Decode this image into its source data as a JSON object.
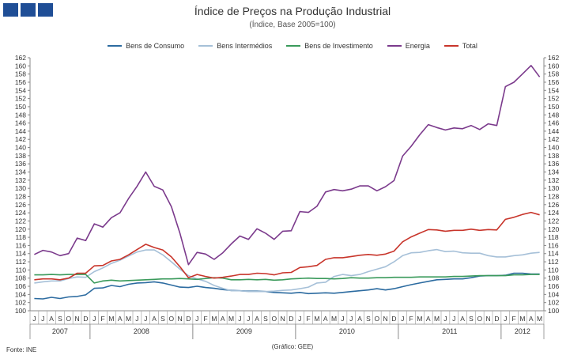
{
  "title": "Índice de Preços na Produção Industrial",
  "subtitle": "(Índice, Base 2005=100)",
  "source": "Fonte: INE",
  "credit": "(Gráfico: GEE)",
  "colors": {
    "logo": "#1f4e96",
    "Bens de Consumo": "#2c6ba0",
    "Bens Intermédios": "#a6c0d8",
    "Bens de Investimento": "#3a9a5b",
    "Energia": "#7b3a8c",
    "Total": "#c8352b"
  },
  "chart_data": {
    "type": "line",
    "ylim": [
      100,
      162
    ],
    "ytick_step": 2,
    "grid": false,
    "legend_position": "top",
    "months": [
      "J",
      "J",
      "A",
      "S",
      "O",
      "N",
      "D",
      "J",
      "F",
      "M",
      "A",
      "M",
      "J",
      "J",
      "A",
      "S",
      "O",
      "N",
      "D",
      "J",
      "F",
      "M",
      "A",
      "M",
      "J",
      "J",
      "A",
      "S",
      "O",
      "N",
      "D",
      "J",
      "F",
      "M",
      "A",
      "M",
      "J",
      "J",
      "A",
      "S",
      "O",
      "N",
      "D",
      "J",
      "F",
      "M",
      "A",
      "M",
      "J",
      "J",
      "A",
      "S",
      "O",
      "N",
      "D",
      "J",
      "F",
      "M",
      "A",
      "M"
    ],
    "years": [
      {
        "label": "2007",
        "start": 0,
        "count": 7
      },
      {
        "label": "2008",
        "start": 7,
        "count": 12
      },
      {
        "label": "2009",
        "start": 19,
        "count": 12
      },
      {
        "label": "2010",
        "start": 31,
        "count": 12
      },
      {
        "label": "2011",
        "start": 43,
        "count": 12
      },
      {
        "label": "2012",
        "start": 55,
        "count": 5
      }
    ],
    "series": [
      {
        "name": "Bens de Consumo",
        "values": [
          103.0,
          102.9,
          103.3,
          103.0,
          103.4,
          103.5,
          103.9,
          105.5,
          105.6,
          106.2,
          105.9,
          106.5,
          106.8,
          106.9,
          107.1,
          106.8,
          106.3,
          105.8,
          105.7,
          106.0,
          105.7,
          105.5,
          105.2,
          105.0,
          104.9,
          104.8,
          104.8,
          104.7,
          104.5,
          104.4,
          104.3,
          104.5,
          104.2,
          104.3,
          104.4,
          104.3,
          104.5,
          104.7,
          104.9,
          105.1,
          105.4,
          105.1,
          105.4,
          105.9,
          106.4,
          106.8,
          107.2,
          107.6,
          107.7,
          107.8,
          107.8,
          108.1,
          108.5,
          108.6,
          108.6,
          108.7,
          109.2,
          109.2,
          109.0,
          109.0
        ]
      },
      {
        "name": "Bens Intermédios",
        "values": [
          106.8,
          107.1,
          107.3,
          107.3,
          107.9,
          108.3,
          108.2,
          109.6,
          110.5,
          111.6,
          112.4,
          113.4,
          114.4,
          114.9,
          114.9,
          113.7,
          112.0,
          110.2,
          108.6,
          107.8,
          107.2,
          106.2,
          105.5,
          104.9,
          104.9,
          104.7,
          104.7,
          104.7,
          104.8,
          105.0,
          105.1,
          105.4,
          105.8,
          106.8,
          107.0,
          108.4,
          108.9,
          108.6,
          108.9,
          109.6,
          110.2,
          110.8,
          112.0,
          113.5,
          114.2,
          114.3,
          114.7,
          115.0,
          114.5,
          114.6,
          114.2,
          114.1,
          114.1,
          113.5,
          113.2,
          113.2,
          113.5,
          113.7,
          114.1,
          114.3
        ]
      },
      {
        "name": "Bens de Investimento",
        "values": [
          108.8,
          108.8,
          108.9,
          108.8,
          108.9,
          108.9,
          108.9,
          106.8,
          107.3,
          107.5,
          107.3,
          107.4,
          107.5,
          107.6,
          107.7,
          107.8,
          107.8,
          107.9,
          107.8,
          107.7,
          107.9,
          108.1,
          108.0,
          107.6,
          107.6,
          107.7,
          107.6,
          107.7,
          107.5,
          107.6,
          107.8,
          107.9,
          108.0,
          107.9,
          107.9,
          107.8,
          107.9,
          108.1,
          108.0,
          108.0,
          108.1,
          108.1,
          108.2,
          108.2,
          108.2,
          108.3,
          108.3,
          108.3,
          108.3,
          108.4,
          108.4,
          108.5,
          108.6,
          108.6,
          108.6,
          108.6,
          108.8,
          108.8,
          108.9,
          108.9
        ]
      },
      {
        "name": "Energia",
        "values": [
          113.8,
          114.8,
          114.4,
          113.5,
          114.0,
          117.8,
          117.2,
          121.3,
          120.5,
          122.8,
          124.0,
          127.5,
          130.5,
          134.0,
          130.5,
          129.6,
          125.5,
          119.0,
          111.3,
          114.3,
          113.9,
          112.6,
          114.2,
          116.4,
          118.3,
          117.5,
          120.1,
          119.0,
          117.5,
          119.5,
          119.6,
          124.3,
          124.1,
          125.6,
          129.1,
          129.7,
          129.4,
          129.8,
          130.6,
          130.6,
          129.4,
          130.4,
          131.9,
          137.9,
          140.3,
          143.1,
          145.6,
          144.9,
          144.3,
          144.8,
          144.6,
          145.4,
          144.4,
          145.8,
          145.4,
          154.9,
          156.0,
          158.0,
          160.1,
          157.3
        ]
      },
      {
        "name": "Total",
        "values": [
          107.6,
          107.8,
          107.8,
          107.6,
          108.0,
          109.2,
          109.2,
          111.0,
          111.1,
          112.2,
          112.6,
          113.7,
          115.0,
          116.3,
          115.5,
          114.9,
          113.2,
          110.8,
          108.1,
          108.9,
          108.4,
          108.0,
          108.2,
          108.5,
          108.9,
          108.9,
          109.2,
          109.1,
          108.8,
          109.3,
          109.4,
          110.6,
          110.8,
          111.1,
          112.6,
          113.0,
          113.0,
          113.3,
          113.6,
          113.8,
          113.6,
          113.9,
          114.6,
          116.9,
          118.1,
          119.0,
          119.9,
          119.8,
          119.5,
          119.7,
          119.7,
          120.0,
          119.7,
          119.9,
          119.8,
          122.4,
          122.9,
          123.6,
          124.1,
          123.5
        ]
      }
    ]
  }
}
